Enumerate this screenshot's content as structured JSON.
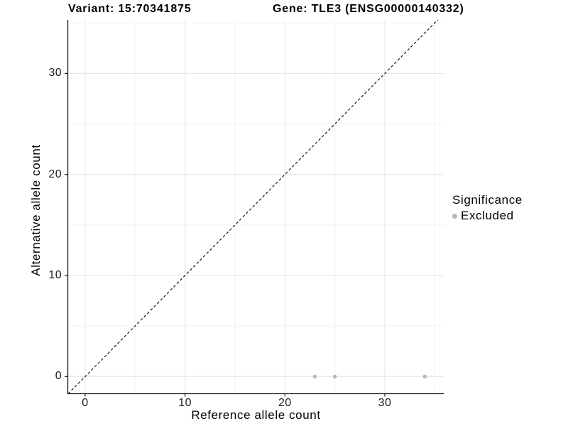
{
  "header": {
    "title_variant": "Variant: 15:70341875",
    "title_gene": "Gene: TLE3 (ENSG00000140332)"
  },
  "chart_data": {
    "type": "scatter",
    "title_variant": "Variant: 15:70341875",
    "title_gene": "Gene: TLE3 (ENSG00000140332)",
    "xlabel": "Reference allele count",
    "ylabel": "Alternative allele count",
    "x_ticks": [
      0,
      10,
      20,
      30
    ],
    "y_ticks": [
      0,
      10,
      20,
      30
    ],
    "x_minor_gridlines": [
      5,
      15,
      25,
      35
    ],
    "y_minor_gridlines": [
      5,
      15,
      25,
      35
    ],
    "xlim": [
      -1.7,
      35.9
    ],
    "ylim": [
      -1.7,
      35.3
    ],
    "grid": true,
    "legend_position": "right",
    "series": [
      {
        "name": "Excluded",
        "color": "#b8b8b8",
        "points": [
          {
            "x": 23,
            "y": 0
          },
          {
            "x": 25,
            "y": 0
          },
          {
            "x": 34,
            "y": 0
          }
        ]
      }
    ],
    "reference_line": {
      "type": "identity",
      "slope": 1,
      "intercept": 0,
      "style": "dashed"
    },
    "legend": {
      "title": "Significance",
      "items": [
        {
          "label": "Excluded",
          "color": "#b8b8b8",
          "marker": "circle"
        }
      ]
    },
    "colors": {
      "point": "#b8b8b8",
      "grid_major": "#e4e4e4",
      "grid_minor": "#f1f1f1",
      "axis": "#1a1a1a",
      "reference_line": "#1a1a1a",
      "text": "#000000"
    }
  }
}
